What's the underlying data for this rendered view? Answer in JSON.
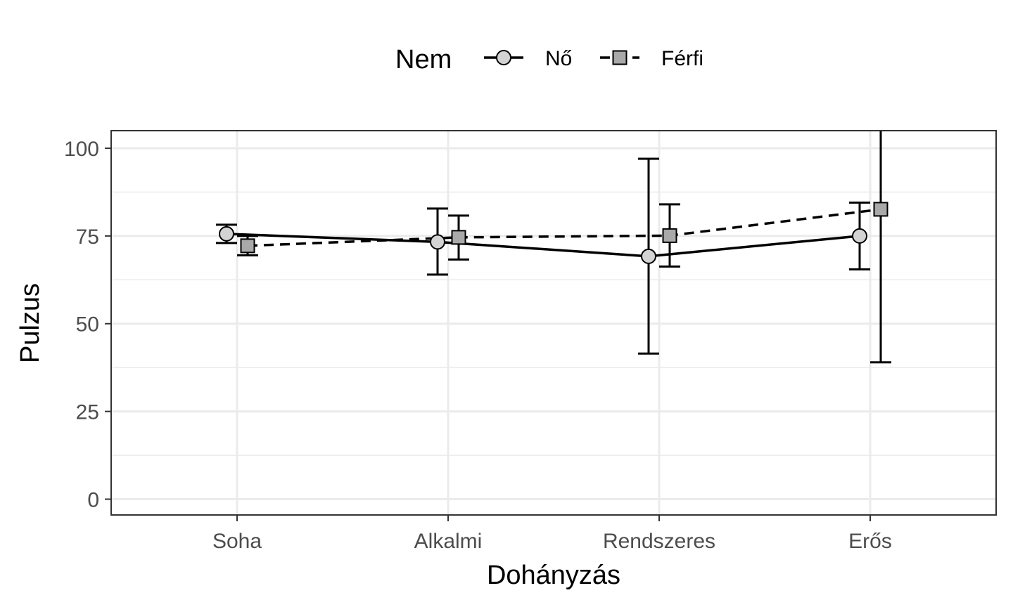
{
  "chart_data": {
    "type": "line",
    "xlabel": "Dohányzás",
    "ylabel": "Pulzus",
    "categories": [
      "Soha",
      "Alkalmi",
      "Rendszeres",
      "Erős"
    ],
    "ylim": [
      -4.5,
      105
    ],
    "yticks": [
      0,
      25,
      50,
      75,
      100
    ],
    "grid": true,
    "error_bars": true,
    "legend": {
      "title": "Nem",
      "position": "top"
    },
    "series": [
      {
        "name": "Nő",
        "marker": "circle",
        "line_style": "solid",
        "marker_fill": "#d3d3d3",
        "values": [
          75.6,
          73.3,
          69.2,
          75.0
        ],
        "error_low": [
          73.0,
          64.0,
          41.5,
          65.5
        ],
        "error_high": [
          78.2,
          82.8,
          97.0,
          84.5
        ]
      },
      {
        "name": "Férfi",
        "marker": "square",
        "line_style": "dashed",
        "marker_fill": "#a9a9a9",
        "values": [
          72.2,
          74.6,
          75.1,
          82.6
        ],
        "error_low": [
          69.5,
          68.3,
          66.3,
          39.0
        ],
        "error_high": [
          75.0,
          80.8,
          84.0,
          120.0
        ]
      }
    ]
  }
}
